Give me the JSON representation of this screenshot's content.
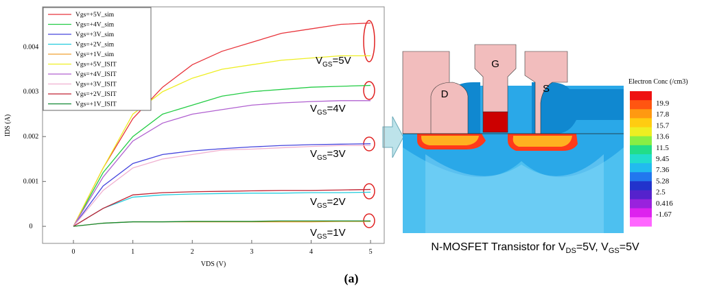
{
  "chart_data": {
    "type": "line",
    "x_label": "VDS (V)",
    "y_label": "IDS (A)",
    "x": [
      0,
      0.5,
      1,
      1.5,
      2,
      2.5,
      3,
      3.5,
      4,
      4.5,
      5
    ],
    "xlim": [
      -0.52,
      5.23
    ],
    "xticks": [
      0,
      1,
      2,
      3,
      4,
      5
    ],
    "ylim": [
      -0.00038,
      0.00489
    ],
    "yticks": [
      0,
      0.001,
      0.002,
      0.003,
      0.004
    ],
    "legend": "top-left",
    "series": [
      {
        "name": "Vgs=+5V_sim",
        "color": "#e8333a",
        "values": [
          0,
          0.0013,
          0.0024,
          0.0031,
          0.0036,
          0.0039,
          0.0041,
          0.0043,
          0.0044,
          0.0045,
          0.00453
        ]
      },
      {
        "name": "Vgs=+4V_sim",
        "color": "#22cc44",
        "values": [
          0,
          0.0012,
          0.002,
          0.0025,
          0.0027,
          0.0029,
          0.003,
          0.00305,
          0.0031,
          0.00312,
          0.00314
        ]
      },
      {
        "name": "Vgs=+3V_sim",
        "color": "#4444dd",
        "values": [
          0,
          0.0009,
          0.0014,
          0.0016,
          0.00168,
          0.00173,
          0.00177,
          0.0018,
          0.00182,
          0.00183,
          0.00184
        ]
      },
      {
        "name": "Vgs=+2V_sim",
        "color": "#22ccdd",
        "values": [
          0,
          0.0004,
          0.00065,
          0.0007,
          0.00072,
          0.00073,
          0.00074,
          0.00074,
          0.00075,
          0.00075,
          0.00076
        ]
      },
      {
        "name": "Vgs=+1V_sim",
        "color": "#f0a030",
        "values": [
          0,
          7e-05,
          0.0001,
          0.0001,
          0.0001,
          0.0001,
          0.0001,
          0.0001,
          0.0001,
          0.00011,
          0.00011
        ]
      },
      {
        "name": "Vgs=+5V_ISIT",
        "color": "#eeee22",
        "values": [
          0,
          0.0013,
          0.0025,
          0.003,
          0.0033,
          0.0035,
          0.0036,
          0.0037,
          0.00375,
          0.0038,
          0.0038
        ]
      },
      {
        "name": "Vgs=+4V_ISIT",
        "color": "#b060d0",
        "values": [
          0,
          0.0011,
          0.0019,
          0.0023,
          0.0025,
          0.0026,
          0.0027,
          0.00275,
          0.00278,
          0.0028,
          0.0028
        ]
      },
      {
        "name": "Vgs=+3V_ISIT",
        "color": "#f0b0d0",
        "values": [
          0,
          0.0008,
          0.0013,
          0.0015,
          0.0016,
          0.0017,
          0.00172,
          0.00175,
          0.00178,
          0.0018,
          0.0018
        ]
      },
      {
        "name": "Vgs=+2V_ISIT",
        "color": "#c02030",
        "values": [
          0,
          0.0004,
          0.0007,
          0.00075,
          0.00077,
          0.00078,
          0.00079,
          0.0008,
          0.0008,
          0.00081,
          0.00082
        ]
      },
      {
        "name": "Vgs=+1V_ISIT",
        "color": "#118833",
        "values": [
          0,
          7e-05,
          0.0001,
          0.0001,
          0.00011,
          0.00011,
          0.00011,
          0.00012,
          0.00012,
          0.00012,
          0.00012
        ]
      }
    ],
    "annotations": [
      {
        "main": "V",
        "sub": "GS",
        "rest": "=5V"
      },
      {
        "main": "V",
        "sub": "GS",
        "rest": "=4V"
      },
      {
        "main": "V",
        "sub": "GS",
        "rest": "=3V"
      },
      {
        "main": "V",
        "sub": "GS",
        "rest": "=2V"
      },
      {
        "main": "V",
        "sub": "GS",
        "rest": "=1V"
      }
    ]
  },
  "device": {
    "terminals": [
      "D",
      "G",
      "S"
    ],
    "colorbar_title": "Electron Conc (/cm3)",
    "colorbar_labels": [
      19.9,
      17.8,
      15.7,
      13.6,
      11.5,
      9.45,
      7.36,
      5.28,
      2.5,
      0.416,
      -1.67
    ],
    "caption": [
      "N-MOSFET Transistor for V",
      "DS",
      "=5V, V",
      "GS",
      "=5V"
    ]
  },
  "panel_label": "(a)"
}
